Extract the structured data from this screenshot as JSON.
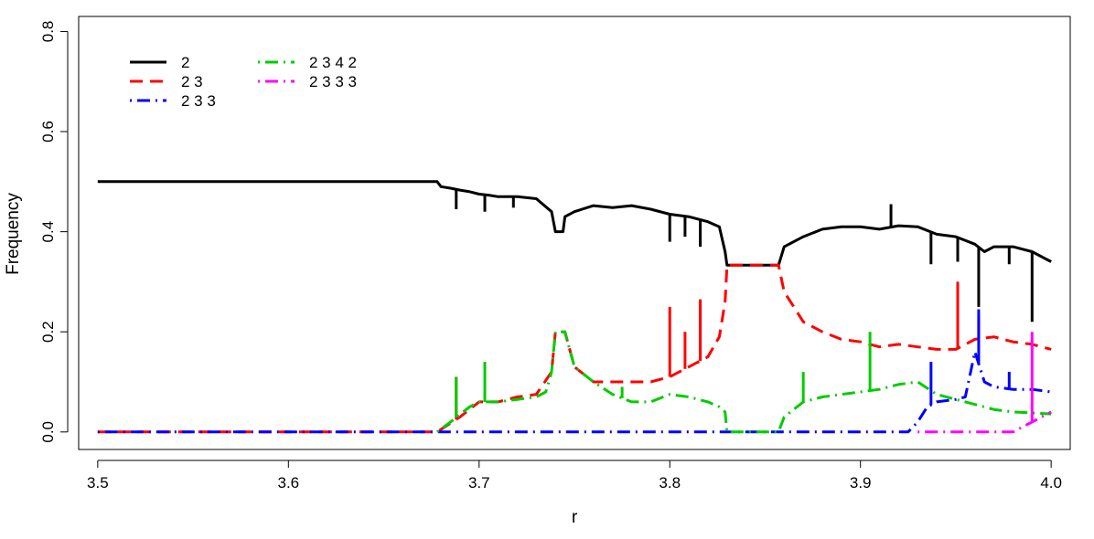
{
  "chart_data": {
    "type": "line",
    "title": "",
    "xlabel": "r",
    "ylabel": "Frequency",
    "xlim": [
      3.49,
      4.01
    ],
    "ylim": [
      -0.035,
      0.83
    ],
    "xticks": [
      3.5,
      3.6,
      3.7,
      3.8,
      3.9,
      4.0
    ],
    "xtick_labels": [
      "3.5",
      "3.6",
      "3.7",
      "3.8",
      "3.9",
      "4.0"
    ],
    "yticks": [
      0.0,
      0.2,
      0.4,
      0.6,
      0.8
    ],
    "ytick_labels": [
      "0.0",
      "0.2",
      "0.4",
      "0.6",
      "0.8"
    ],
    "grid": false,
    "legend_position": "top-left",
    "series": [
      {
        "name": "2",
        "color": "#000000",
        "dash": "solid",
        "x": [
          3.5,
          3.6,
          3.678,
          3.68,
          3.685,
          3.69,
          3.695,
          3.7,
          3.705,
          3.71,
          3.72,
          3.73,
          3.738,
          3.74,
          3.744,
          3.745,
          3.75,
          3.76,
          3.77,
          3.78,
          3.79,
          3.8,
          3.81,
          3.82,
          3.826,
          3.829,
          3.83,
          3.84,
          3.85,
          3.857,
          3.86,
          3.87,
          3.88,
          3.89,
          3.9,
          3.91,
          3.92,
          3.93,
          3.94,
          3.95,
          3.96,
          3.965,
          3.97,
          3.98,
          3.99,
          3.995,
          4.0
        ],
        "y": [
          0.5,
          0.5,
          0.5,
          0.49,
          0.487,
          0.483,
          0.48,
          0.475,
          0.473,
          0.47,
          0.47,
          0.466,
          0.44,
          0.4,
          0.4,
          0.43,
          0.44,
          0.452,
          0.448,
          0.452,
          0.445,
          0.435,
          0.43,
          0.42,
          0.41,
          0.36,
          0.333,
          0.333,
          0.333,
          0.333,
          0.37,
          0.39,
          0.405,
          0.41,
          0.41,
          0.405,
          0.412,
          0.41,
          0.395,
          0.39,
          0.375,
          0.36,
          0.37,
          0.37,
          0.36,
          0.35,
          0.34
        ]
      },
      {
        "name": "2 3",
        "color": "#ff0000",
        "dash": "longdash",
        "x": [
          3.5,
          3.6,
          3.678,
          3.69,
          3.7,
          3.71,
          3.72,
          3.73,
          3.738,
          3.74,
          3.745,
          3.75,
          3.76,
          3.77,
          3.78,
          3.79,
          3.8,
          3.81,
          3.82,
          3.826,
          3.829,
          3.83,
          3.84,
          3.85,
          3.857,
          3.86,
          3.87,
          3.88,
          3.89,
          3.9,
          3.91,
          3.92,
          3.93,
          3.94,
          3.95,
          3.96,
          3.97,
          3.98,
          3.99,
          4.0
        ],
        "y": [
          0.0,
          0.0,
          0.0,
          0.03,
          0.06,
          0.06,
          0.07,
          0.075,
          0.12,
          0.2,
          0.2,
          0.13,
          0.1,
          0.1,
          0.1,
          0.1,
          0.11,
          0.13,
          0.15,
          0.19,
          0.26,
          0.333,
          0.333,
          0.333,
          0.333,
          0.28,
          0.22,
          0.2,
          0.185,
          0.18,
          0.17,
          0.175,
          0.17,
          0.165,
          0.165,
          0.185,
          0.19,
          0.18,
          0.175,
          0.165
        ]
      },
      {
        "name": "2 3 3",
        "color": "#0000ff",
        "dash": "dotdash",
        "x": [
          3.5,
          3.6,
          3.678,
          3.75,
          3.8,
          3.83,
          3.85,
          3.9,
          3.925,
          3.93,
          3.935,
          3.94,
          3.95,
          3.955,
          3.96,
          3.965,
          3.97,
          3.98,
          3.99,
          4.0
        ],
        "y": [
          0.0,
          0.0,
          0.0,
          0.0,
          0.0,
          0.0,
          0.0,
          0.0,
          0.0,
          0.02,
          0.05,
          0.06,
          0.065,
          0.07,
          0.16,
          0.1,
          0.09,
          0.085,
          0.085,
          0.08
        ]
      },
      {
        "name": "2 3 4 2",
        "color": "#00cc00",
        "dash": "dotdash",
        "x": [
          3.678,
          3.685,
          3.69,
          3.695,
          3.7,
          3.71,
          3.72,
          3.73,
          3.735,
          3.738,
          3.74,
          3.745,
          3.75,
          3.76,
          3.77,
          3.78,
          3.79,
          3.8,
          3.81,
          3.82,
          3.826,
          3.829,
          3.83,
          3.84,
          3.85,
          3.857,
          3.86,
          3.87,
          3.88,
          3.89,
          3.9,
          3.91,
          3.92,
          3.93,
          3.94,
          3.95,
          3.96,
          3.97,
          3.98,
          3.99,
          4.0
        ],
        "y": [
          0.0,
          0.02,
          0.035,
          0.05,
          0.06,
          0.06,
          0.065,
          0.07,
          0.08,
          0.12,
          0.2,
          0.2,
          0.13,
          0.1,
          0.075,
          0.06,
          0.06,
          0.075,
          0.07,
          0.06,
          0.05,
          0.04,
          0.0,
          0.0,
          0.0,
          0.0,
          0.03,
          0.06,
          0.07,
          0.075,
          0.08,
          0.085,
          0.095,
          0.1,
          0.075,
          0.065,
          0.055,
          0.045,
          0.04,
          0.038,
          0.036
        ]
      },
      {
        "name": "2 3 3 3",
        "color": "#ff00ff",
        "dash": "dotdash",
        "x": [
          3.93,
          3.95,
          3.97,
          3.98,
          3.985,
          3.99,
          3.995,
          4.0
        ],
        "y": [
          0.0,
          0.0,
          0.0,
          0.0,
          0.01,
          0.02,
          0.03,
          0.04
        ]
      }
    ],
    "spikes": [
      {
        "series": 0,
        "x": 3.688,
        "y": 0.445
      },
      {
        "series": 0,
        "x": 3.703,
        "y": 0.44
      },
      {
        "series": 0,
        "x": 3.718,
        "y": 0.448
      },
      {
        "series": 0,
        "x": 3.8,
        "y": 0.38
      },
      {
        "series": 0,
        "x": 3.808,
        "y": 0.39
      },
      {
        "series": 0,
        "x": 3.816,
        "y": 0.37
      },
      {
        "series": 0,
        "x": 3.937,
        "y": 0.335
      },
      {
        "series": 0,
        "x": 3.951,
        "y": 0.34
      },
      {
        "series": 0,
        "x": 3.962,
        "y": 0.25
      },
      {
        "series": 0,
        "x": 3.978,
        "y": 0.335
      },
      {
        "series": 0,
        "x": 3.99,
        "y": 0.22
      },
      {
        "series": 0,
        "x": 3.916,
        "y": 0.455
      },
      {
        "series": 1,
        "x": 3.8,
        "y": 0.25
      },
      {
        "series": 1,
        "x": 3.808,
        "y": 0.2
      },
      {
        "series": 1,
        "x": 3.816,
        "y": 0.265
      },
      {
        "series": 1,
        "x": 3.951,
        "y": 0.3
      },
      {
        "series": 1,
        "x": 3.962,
        "y": 0.23
      },
      {
        "series": 1,
        "x": 3.688,
        "y": 0.11
      },
      {
        "series": 2,
        "x": 3.962,
        "y": 0.245
      },
      {
        "series": 2,
        "x": 3.937,
        "y": 0.14
      },
      {
        "series": 2,
        "x": 3.978,
        "y": 0.12
      },
      {
        "series": 3,
        "x": 3.688,
        "y": 0.11
      },
      {
        "series": 3,
        "x": 3.703,
        "y": 0.14
      },
      {
        "series": 3,
        "x": 3.775,
        "y": 0.09
      },
      {
        "series": 3,
        "x": 3.905,
        "y": 0.2
      },
      {
        "series": 3,
        "x": 3.87,
        "y": 0.12
      },
      {
        "series": 4,
        "x": 3.99,
        "y": 0.2
      }
    ]
  }
}
